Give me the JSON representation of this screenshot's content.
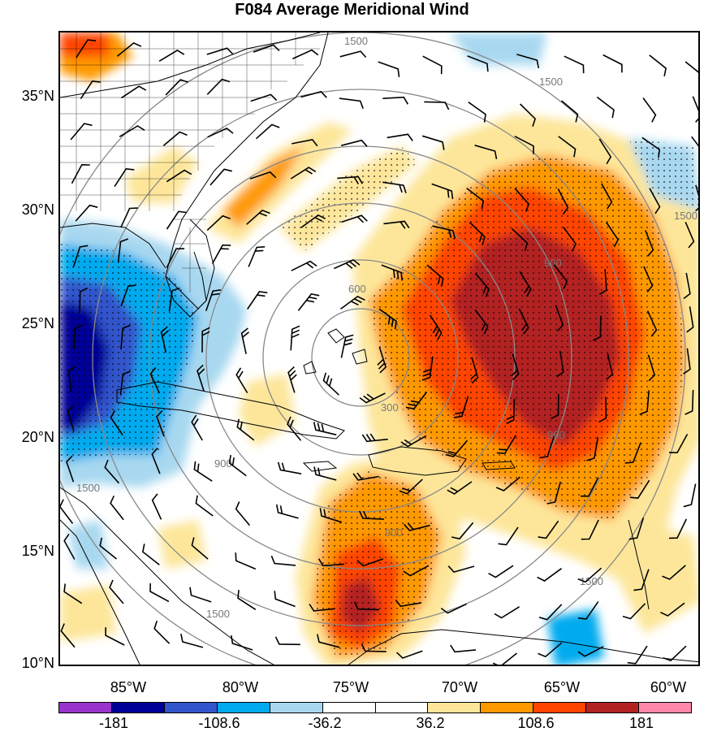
{
  "title": "F084 Average Meridional Wind",
  "lat_labels": [
    "35°N",
    "30°N",
    "25°N",
    "20°N",
    "15°N",
    "10°N"
  ],
  "lon_labels": [
    "85°W",
    "80°W",
    "75°W",
    "70°W",
    "65°W",
    "60°W"
  ],
  "colorbar": {
    "colors": [
      "#9933cc",
      "#000099",
      "#3355cc",
      "#00aaee",
      "#a8d8f0",
      "#ffffff",
      "#ffffff",
      "#fde69a",
      "#ff9900",
      "#ff4400",
      "#b22222",
      "#ff88aa"
    ],
    "labels": [
      "-181",
      "-108.6",
      "-36.2",
      "36.2",
      "108.6",
      "181"
    ]
  },
  "contour_labels": [
    "1500",
    "1500",
    "1500",
    "900",
    "600",
    "300",
    "900",
    "900",
    "1500",
    "1500",
    "1500",
    "900"
  ]
}
